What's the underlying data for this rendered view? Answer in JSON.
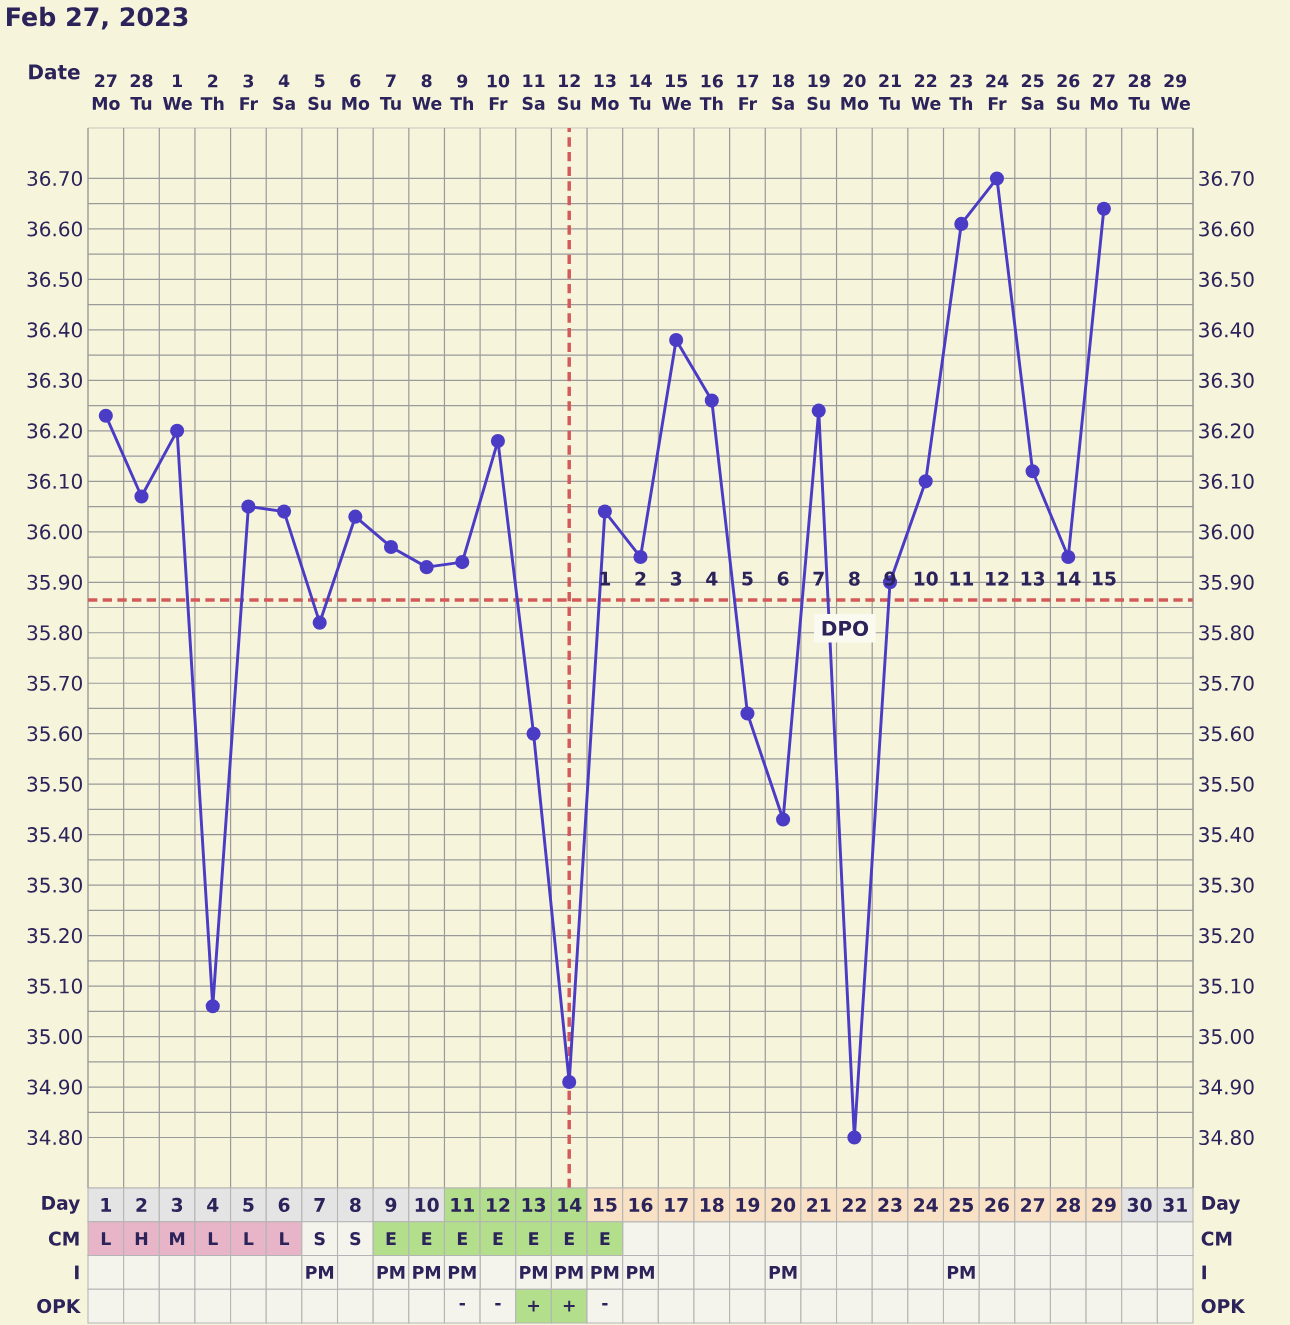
{
  "chart_data": [
    {
      "type": "line",
      "title": "Feb 27, 2023",
      "xlabel": "Date",
      "categories": [
        "27 Mo",
        "28 Tu",
        "1 We",
        "2 Th",
        "3 Fr",
        "4 Sa",
        "5 Su",
        "6 Mo",
        "7 Tu",
        "8 We",
        "9 Th",
        "10 Fr",
        "11 Sa",
        "12 Su",
        "13 Mo",
        "14 Tu",
        "15 We",
        "16 Th",
        "17 Fr",
        "18 Sa",
        "19 Su",
        "20 Mo",
        "21 Tu",
        "22 We",
        "23 Th",
        "24 Fr",
        "25 Sa",
        "26 Su",
        "27 Mo",
        "28 Tu",
        "29 We"
      ],
      "series": [
        {
          "color": "#4b3cc6",
          "values": [
            36.23,
            36.07,
            36.2,
            35.06,
            36.05,
            36.04,
            35.82,
            36.03,
            35.97,
            35.93,
            35.94,
            36.18,
            35.6,
            34.91,
            36.04,
            35.95,
            36.38,
            36.26,
            35.64,
            35.43,
            36.24,
            34.8,
            35.9,
            36.1,
            36.61,
            36.7,
            36.12,
            35.95,
            36.64,
            null,
            null
          ]
        }
      ],
      "ylim": [
        34.7,
        36.8
      ],
      "yticks": [
        {
          "value": 34.8,
          "label": "34.80"
        },
        {
          "value": 34.9,
          "label": "34.90"
        },
        {
          "value": 35.0,
          "label": "35.00"
        },
        {
          "value": 35.1,
          "label": "35.10"
        },
        {
          "value": 35.2,
          "label": "35.20"
        },
        {
          "value": 35.3,
          "label": "35.30"
        },
        {
          "value": 35.4,
          "label": "35.40"
        },
        {
          "value": 35.5,
          "label": "35.50"
        },
        {
          "value": 35.6,
          "label": "35.60"
        },
        {
          "value": 35.7,
          "label": "35.70"
        },
        {
          "value": 35.8,
          "label": "35.80"
        },
        {
          "value": 35.9,
          "label": "35.90"
        },
        {
          "value": 36.0,
          "label": "36.00"
        },
        {
          "value": 36.1,
          "label": "36.10"
        },
        {
          "value": 36.2,
          "label": "36.20"
        },
        {
          "value": 36.3,
          "label": "36.30"
        },
        {
          "value": 36.4,
          "label": "36.40"
        },
        {
          "value": 36.5,
          "label": "36.50"
        },
        {
          "value": 36.6,
          "label": "36.60"
        },
        {
          "value": 36.7,
          "label": "36.70"
        }
      ],
      "y2lim": [
        34.7,
        36.8
      ],
      "y2ticks": [
        {
          "value": 34.8,
          "label": "34.80"
        },
        {
          "value": 34.9,
          "label": "34.90"
        },
        {
          "value": 35.0,
          "label": "35.00"
        },
        {
          "value": 35.1,
          "label": "35.10"
        },
        {
          "value": 35.2,
          "label": "35.20"
        },
        {
          "value": 35.3,
          "label": "35.30"
        },
        {
          "value": 35.4,
          "label": "35.40"
        },
        {
          "value": 35.5,
          "label": "35.50"
        },
        {
          "value": 35.6,
          "label": "35.60"
        },
        {
          "value": 35.7,
          "label": "35.70"
        },
        {
          "value": 35.8,
          "label": "35.80"
        },
        {
          "value": 35.9,
          "label": "35.90"
        },
        {
          "value": 36.0,
          "label": "36.00"
        },
        {
          "value": 36.1,
          "label": "36.10"
        },
        {
          "value": 36.2,
          "label": "36.20"
        },
        {
          "value": 36.3,
          "label": "36.30"
        },
        {
          "value": 36.4,
          "label": "36.40"
        },
        {
          "value": 36.5,
          "label": "36.50"
        },
        {
          "value": 36.6,
          "label": "36.60"
        },
        {
          "value": 36.7,
          "label": "36.70"
        }
      ],
      "ref_lines": [
        {
          "axis": "y",
          "value": 35.865,
          "color": "#d35a5a",
          "line_style": "dashed"
        },
        {
          "axis": "x",
          "value": "12 Su",
          "color": "#d35a5a",
          "line_style": "dashed"
        }
      ],
      "annotations": [
        "DPO",
        "1",
        "2",
        "3",
        "4",
        "5",
        "6",
        "7",
        "8",
        "9",
        "10",
        "11",
        "12",
        "13",
        "14",
        "15"
      ],
      "grid": true,
      "marker": "circle",
      "line_style": "solid"
    },
    {
      "type": "heatmap",
      "categories": [
        null,
        null,
        null,
        null,
        null,
        null,
        null,
        null,
        null,
        null,
        null,
        null,
        null,
        null,
        null,
        null,
        null,
        null,
        null,
        null,
        null,
        null,
        null,
        null,
        null,
        null,
        null,
        null,
        null,
        null,
        null
      ],
      "y_categories": [
        "Day",
        "CM",
        "I",
        "OPK"
      ],
      "y2_categories": [
        "Day",
        "CM",
        "I",
        "OPK"
      ],
      "cells": [
        [
          null,
          null,
          null,
          null,
          null,
          null,
          null,
          null,
          null,
          null,
          null,
          null,
          null,
          null,
          null,
          null,
          null,
          null,
          null,
          null,
          null,
          null,
          null,
          null,
          null,
          null,
          null,
          null,
          null,
          null,
          null
        ],
        [
          null,
          null,
          null,
          null,
          null,
          null,
          null,
          null,
          null,
          null,
          null,
          null,
          null,
          null,
          null,
          null,
          null,
          null,
          null,
          null,
          null,
          null,
          null,
          null,
          null,
          null,
          null,
          null,
          null,
          null,
          null
        ],
        [
          null,
          null,
          null,
          null,
          null,
          null,
          null,
          null,
          null,
          null,
          null,
          null,
          null,
          null,
          null,
          null,
          null,
          null,
          null,
          null,
          null,
          null,
          null,
          null,
          null,
          null,
          null,
          null,
          null,
          null,
          null
        ],
        [
          null,
          null,
          null,
          null,
          null,
          null,
          null,
          null,
          null,
          null,
          null,
          null,
          null,
          null,
          null,
          null,
          null,
          null,
          null,
          null,
          null,
          null,
          null,
          null,
          null,
          null,
          null,
          null,
          null,
          null,
          null
        ]
      ],
      "cell_labels": [
        [
          "1",
          "2",
          "3",
          "4",
          "5",
          "6",
          "7",
          "8",
          "9",
          "10",
          "11",
          "12",
          "13",
          "14",
          "15",
          "16",
          "17",
          "18",
          "19",
          "20",
          "21",
          "22",
          "23",
          "24",
          "25",
          "26",
          "27",
          "28",
          "29",
          "30",
          "31"
        ],
        [
          "L",
          "H",
          "M",
          "L",
          "L",
          "L",
          "S",
          "S",
          "E",
          "E",
          "E",
          "E",
          "E",
          "E",
          "E",
          null,
          null,
          null,
          null,
          null,
          null,
          null,
          null,
          null,
          null,
          null,
          null,
          null,
          null,
          null,
          null
        ],
        [
          null,
          null,
          null,
          null,
          null,
          null,
          "PM",
          null,
          "PM",
          "PM",
          "PM",
          null,
          "PM",
          "PM",
          "PM",
          "PM",
          null,
          null,
          null,
          "PM",
          null,
          null,
          null,
          null,
          "PM",
          null,
          null,
          null,
          null,
          null,
          null
        ],
        [
          null,
          null,
          null,
          null,
          null,
          null,
          null,
          null,
          null,
          null,
          "-",
          "-",
          "+",
          "+",
          "-",
          null,
          null,
          null,
          null,
          null,
          null,
          null,
          null,
          null,
          null,
          null,
          null,
          null,
          null,
          null,
          null
        ]
      ],
      "colors": [
        [
          "#e4e4e4",
          "#e4e4e4",
          "#e4e4e4",
          "#e4e4e4",
          "#e4e4e4",
          "#e4e4e4",
          "#e4e4e4",
          "#e4e4e4",
          "#e4e4e4",
          "#e4e4e4",
          "#b3df8c",
          "#b3df8c",
          "#b3df8c",
          "#b3df8c",
          "#f9e1c6",
          "#f9e1c6",
          "#f9e1c6",
          "#f9e1c6",
          "#f9e1c6",
          "#f9e1c6",
          "#f9e1c6",
          "#f9e1c6",
          "#f9e1c6",
          "#f9e1c6",
          "#f9e1c6",
          "#f9e1c6",
          "#f9e1c6",
          "#f9e1c6",
          "#f9e1c6",
          "#e4e4e4",
          "#e4e4e4"
        ],
        [
          "#e7b5c7",
          "#e7b5c7",
          "#e7b5c7",
          "#e7b5c7",
          "#e7b5c7",
          "#e7b5c7",
          "#f4f4ec",
          "#f4f4ec",
          "#b3df8c",
          "#b3df8c",
          "#b3df8c",
          "#b3df8c",
          "#b3df8c",
          "#b3df8c",
          "#b3df8c",
          "#f4f4ec",
          "#f4f4ec",
          "#f4f4ec",
          "#f4f4ec",
          "#f4f4ec",
          "#f4f4ec",
          "#f4f4ec",
          "#f4f4ec",
          "#f4f4ec",
          "#f4f4ec",
          "#f4f4ec",
          "#f4f4ec",
          "#f4f4ec",
          "#f4f4ec",
          "#f4f4ec",
          "#f4f4ec"
        ],
        [
          "#f4f4ec",
          "#f4f4ec",
          "#f4f4ec",
          "#f4f4ec",
          "#f4f4ec",
          "#f4f4ec",
          "#f4f4ec",
          "#f4f4ec",
          "#f4f4ec",
          "#f4f4ec",
          "#f4f4ec",
          "#f4f4ec",
          "#f4f4ec",
          "#f4f4ec",
          "#f4f4ec",
          "#f4f4ec",
          "#f4f4ec",
          "#f4f4ec",
          "#f4f4ec",
          "#f4f4ec",
          "#f4f4ec",
          "#f4f4ec",
          "#f4f4ec",
          "#f4f4ec",
          "#f4f4ec",
          "#f4f4ec",
          "#f4f4ec",
          "#f4f4ec",
          "#f4f4ec",
          "#f4f4ec",
          "#f4f4ec"
        ],
        [
          "#f4f4ec",
          "#f4f4ec",
          "#f4f4ec",
          "#f4f4ec",
          "#f4f4ec",
          "#f4f4ec",
          "#f4f4ec",
          "#f4f4ec",
          "#f4f4ec",
          "#f4f4ec",
          "#f4f4ec",
          "#f4f4ec",
          "#b3df8c",
          "#b3df8c",
          "#f4f4ec",
          "#f4f4ec",
          "#f4f4ec",
          "#f4f4ec",
          "#f4f4ec",
          "#f4f4ec",
          "#f4f4ec",
          "#f4f4ec",
          "#f4f4ec",
          "#f4f4ec",
          "#f4f4ec",
          "#f4f4ec",
          "#f4f4ec",
          "#f4f4ec",
          "#f4f4ec",
          "#f4f4ec",
          "#f4f4ec"
        ]
      ]
    }
  ]
}
